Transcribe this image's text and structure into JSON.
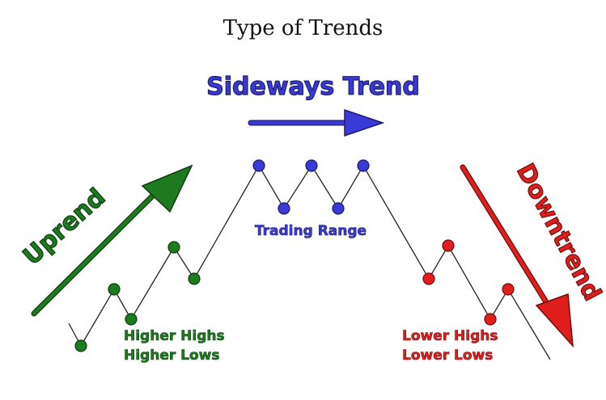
{
  "title": "Type of Trends",
  "labels": {
    "sideways": "Sideways Trend",
    "uptrend": "Uprend",
    "downtrend": "Downtrend",
    "trading_range": "Trading Range",
    "higher_highs": "Higher Highs",
    "higher_lows": "Higher Lows",
    "lower_highs": "Lower Highs",
    "lower_lows": "Lower Lows"
  },
  "colors": {
    "uptrend": "#1e7a1e",
    "sideways": "#3a3ad6",
    "downtrend": "#e01e1e",
    "line": "#222222"
  }
}
